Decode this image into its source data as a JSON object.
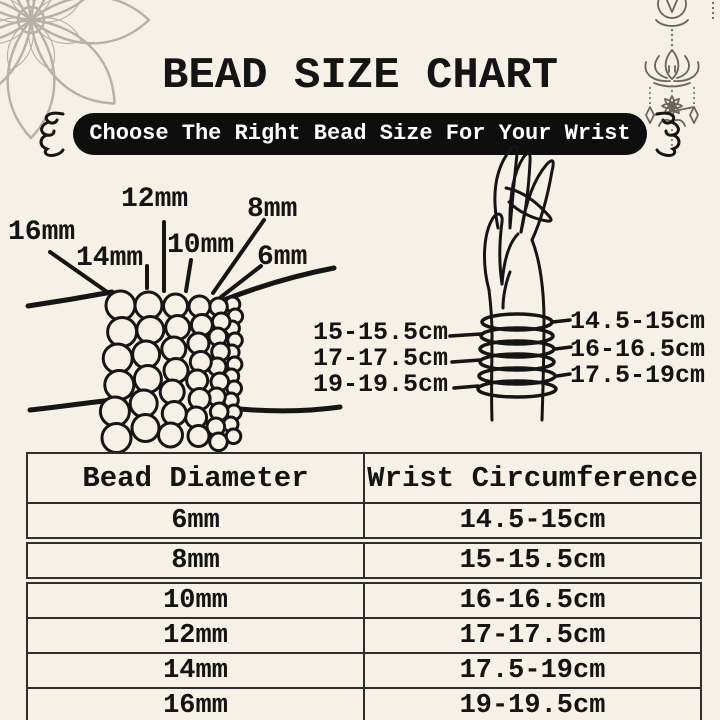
{
  "title": "BEAD SIZE CHART",
  "banner": {
    "text": "Choose The Right Bead Size For Your Wrist"
  },
  "bead_diagram": {
    "labels": [
      {
        "text": "16mm"
      },
      {
        "text": "14mm"
      },
      {
        "text": "12mm"
      },
      {
        "text": "10mm"
      },
      {
        "text": "8mm"
      },
      {
        "text": "6mm"
      }
    ]
  },
  "wrist_diagram": {
    "left_labels": [
      {
        "text": "15-15.5cm"
      },
      {
        "text": "17-17.5cm"
      },
      {
        "text": "19-19.5cm"
      }
    ],
    "right_labels": [
      {
        "text": "14.5-15cm"
      },
      {
        "text": "16-16.5cm"
      },
      {
        "text": "17.5-19cm"
      }
    ]
  },
  "table": {
    "headers": [
      "Bead Diameter",
      "Wrist Circumference"
    ],
    "rows": [
      [
        "6mm",
        "14.5-15cm"
      ],
      [
        "8mm",
        "15-15.5cm"
      ],
      [
        "10mm",
        "16-16.5cm"
      ],
      [
        "12mm",
        "17-17.5cm"
      ],
      [
        "14mm",
        "17.5-19cm"
      ],
      [
        "16mm",
        "19-19.5cm"
      ]
    ]
  },
  "icons": {
    "top_left": "mandala-flower",
    "top_right": "lotus-hanging-ornament",
    "banner_left": "swirl-bracket",
    "banner_right": "swirl-bracket"
  },
  "colors": {
    "background": "#f5f1e6",
    "ink": "#1a1a1a",
    "banner_bg": "#0e0e0e",
    "banner_text": "#ffffff",
    "mandala_gray": "#b6b2a9",
    "ornament_gray": "#6a665e"
  }
}
